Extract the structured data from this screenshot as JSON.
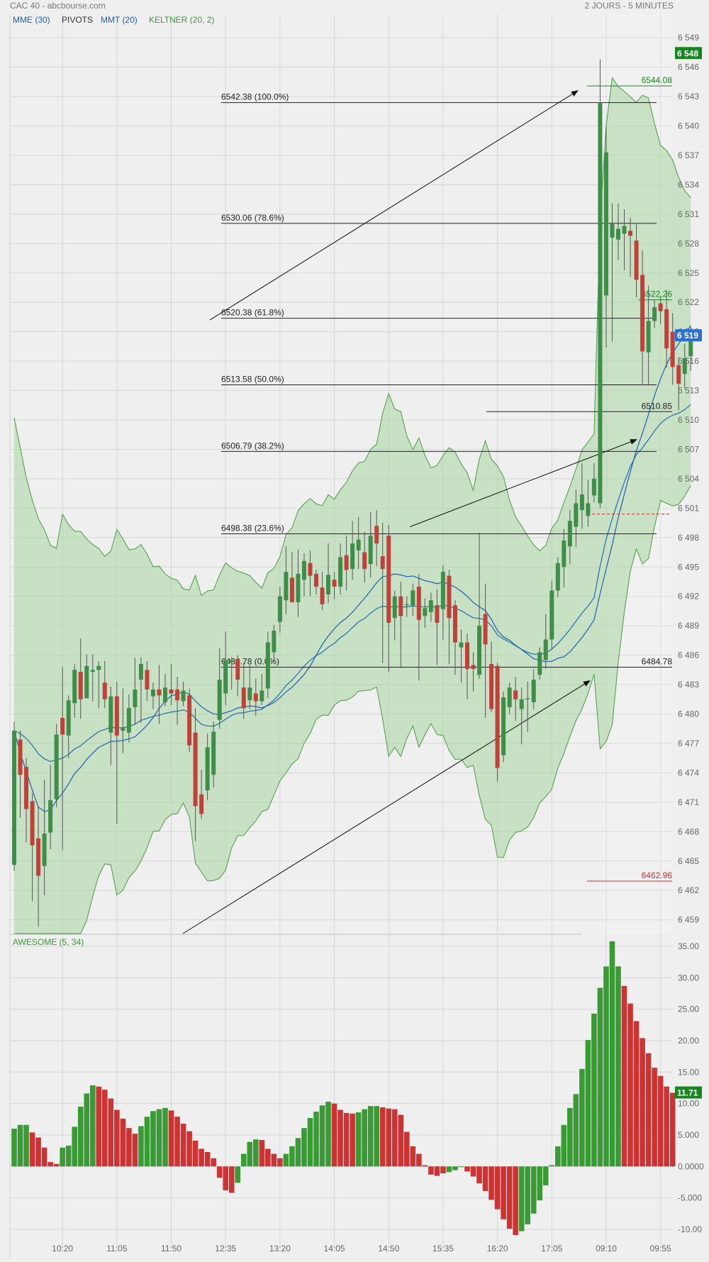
{
  "header": {
    "title": "CAC 40 - abcbourse.com",
    "timeframe": "2 JOURS - 5 MINUTES",
    "legend": [
      {
        "label": "MME (30)",
        "color": "#1f5fb0"
      },
      {
        "label": "PIVOTS",
        "color": "#333333"
      },
      {
        "label": "MMT (20)",
        "color": "#1f5fb0"
      },
      {
        "label": "KELTNER (20, 2)",
        "color": "#3f9b3f"
      }
    ],
    "oscillator_label": "AWESOME (5, 34)"
  },
  "colors": {
    "up": "#3e8e4a",
    "down": "#c0413a",
    "osc_up": "#3a9a35",
    "osc_down": "#cc3333",
    "keltner_fill": "#a8d4a0",
    "keltner_line": "#4c9a44",
    "mme": "#1f6fb0",
    "mmt": "#1f5fb0",
    "badge_green": "#17861f",
    "badge_blue": "#2a6fd4",
    "grid": "#d6d6d6"
  },
  "chart_data": [
    {
      "type": "candlestick",
      "title": "CAC 40",
      "y_ticks": [
        "6 549",
        "6 546",
        "6 543",
        "6 540",
        "6 537",
        "6 534",
        "6 531",
        "6 528",
        "6 525",
        "6 522",
        "6 519",
        "6 516",
        "6 513",
        "6 510",
        "6 507",
        "6 504",
        "6 501",
        "6 498",
        "6 495",
        "6 492",
        "6 489",
        "6 486",
        "6 483",
        "6 480",
        "6 477",
        "6 474",
        "6 471",
        "6 468",
        "6 465",
        "6 462",
        "6 459"
      ],
      "ylim": [
        6457.6,
        6551.4
      ],
      "x_ticks": [
        "10:20",
        "11:05",
        "11:50",
        "12:35",
        "13:20",
        "14:05",
        "14:50",
        "15:35",
        "16:20",
        "17:05",
        "09:10",
        "09:55"
      ],
      "last_price_label": "6 519",
      "high_label": "6 548",
      "candles": [
        {
          "o": 6464.6,
          "c": 6478.3,
          "h": 6479.2,
          "l": 6464.0
        },
        {
          "o": 6477.4,
          "c": 6473.8,
          "h": 6478.3,
          "l": 6469.4
        },
        {
          "o": 6474.6,
          "c": 6470.3,
          "h": 6475.5,
          "l": 6466.9
        },
        {
          "o": 6471.1,
          "c": 6466.6,
          "h": 6471.9,
          "l": 6460.9
        },
        {
          "o": 6467.3,
          "c": 6463.5,
          "h": 6470.6,
          "l": 6458.3
        },
        {
          "o": 6464.5,
          "c": 6467.8,
          "h": 6473.3,
          "l": 6461.5
        },
        {
          "o": 6467.9,
          "c": 6471.2,
          "h": 6474.8,
          "l": 6466.2
        },
        {
          "o": 6471.3,
          "c": 6477.9,
          "h": 6479.0,
          "l": 6470.5
        },
        {
          "o": 6479.6,
          "c": 6477.9,
          "h": 6484.8,
          "l": 6466.1
        },
        {
          "o": 6477.8,
          "c": 6481.4,
          "h": 6481.9,
          "l": 6475.5
        },
        {
          "o": 6481.1,
          "c": 6484.5,
          "h": 6485.1,
          "l": 6479.6
        },
        {
          "o": 6484.3,
          "c": 6481.5,
          "h": 6487.7,
          "l": 6479.5
        },
        {
          "o": 6481.6,
          "c": 6484.9,
          "h": 6486.1,
          "l": 6482.1
        },
        {
          "o": 6484.3,
          "c": 6484.5,
          "h": 6486.1,
          "l": 6481.3
        },
        {
          "o": 6484.5,
          "c": 6484.9,
          "h": 6485.4,
          "l": 6480.6
        },
        {
          "o": 6483.2,
          "c": 6481.5,
          "h": 6485.4,
          "l": 6480.6
        },
        {
          "o": 6478.1,
          "c": 6481.8,
          "h": 6482.8,
          "l": 6474.8
        },
        {
          "o": 6481.8,
          "c": 6477.8,
          "h": 6483.3,
          "l": 6468.8
        },
        {
          "o": 6478.3,
          "c": 6478.6,
          "h": 6482.6,
          "l": 6476.0
        },
        {
          "o": 6478.1,
          "c": 6480.6,
          "h": 6482.0,
          "l": 6477.1
        },
        {
          "o": 6480.7,
          "c": 6482.5,
          "h": 6485.7,
          "l": 6478.9
        },
        {
          "o": 6483.5,
          "c": 6485.1,
          "h": 6485.8,
          "l": 6479.1
        },
        {
          "o": 6484.5,
          "c": 6482.5,
          "h": 6485.4,
          "l": 6481.3
        },
        {
          "o": 6481.8,
          "c": 6482.5,
          "h": 6483.2,
          "l": 6480.5
        },
        {
          "o": 6482.5,
          "c": 6481.9,
          "h": 6485.0,
          "l": 6479.0
        },
        {
          "o": 6481.2,
          "c": 6482.7,
          "h": 6484.1,
          "l": 6480.8
        },
        {
          "o": 6482.5,
          "c": 6482.1,
          "h": 6485.1,
          "l": 6480.9
        },
        {
          "o": 6482.5,
          "c": 6481.4,
          "h": 6483.8,
          "l": 6478.9
        },
        {
          "o": 6481.3,
          "c": 6482.4,
          "h": 6483.3,
          "l": 6480.8
        },
        {
          "o": 6481.9,
          "c": 6476.8,
          "h": 6482.6,
          "l": 6476.1
        },
        {
          "o": 6478.1,
          "c": 6470.6,
          "h": 6480.6,
          "l": 6467.0
        },
        {
          "o": 6471.8,
          "c": 6469.8,
          "h": 6474.3,
          "l": 6469.3
        },
        {
          "o": 6472.2,
          "c": 6476.6,
          "h": 6478.0,
          "l": 6471.2
        },
        {
          "o": 6473.8,
          "c": 6478.2,
          "h": 6479.2,
          "l": 6472.5
        },
        {
          "o": 6479.4,
          "c": 6483.5,
          "h": 6486.7,
          "l": 6478.5
        },
        {
          "o": 6482.1,
          "c": 6485.5,
          "h": 6488.4,
          "l": 6480.9
        },
        {
          "o": 6485.3,
          "c": 6485.5,
          "h": 6485.8,
          "l": 6482.5
        },
        {
          "o": 6485.6,
          "c": 6483.5,
          "h": 6486.0,
          "l": 6481.8
        },
        {
          "o": 6482.7,
          "c": 6480.6,
          "h": 6485.2,
          "l": 6479.5
        },
        {
          "o": 6481.4,
          "c": 6482.7,
          "h": 6485.0,
          "l": 6480.5
        },
        {
          "o": 6482.1,
          "c": 6481.3,
          "h": 6483.6,
          "l": 6479.8
        },
        {
          "o": 6481.3,
          "c": 6482.4,
          "h": 6484.1,
          "l": 6480.9
        },
        {
          "o": 6482.6,
          "c": 6487.3,
          "h": 6488.4,
          "l": 6481.6
        },
        {
          "o": 6486.3,
          "c": 6488.5,
          "h": 6489.1,
          "l": 6485.2
        },
        {
          "o": 6489.4,
          "c": 6492.0,
          "h": 6493.0,
          "l": 6488.3
        },
        {
          "o": 6491.6,
          "c": 6494.5,
          "h": 6497.1,
          "l": 6490.2
        },
        {
          "o": 6493.9,
          "c": 6491.4,
          "h": 6496.5,
          "l": 6491.4
        },
        {
          "o": 6491.4,
          "c": 6494.3,
          "h": 6496.8,
          "l": 6489.9
        },
        {
          "o": 6493.7,
          "c": 6495.6,
          "h": 6496.4,
          "l": 6492.0
        },
        {
          "o": 6495.4,
          "c": 6494.1,
          "h": 6496.7,
          "l": 6492.0
        },
        {
          "o": 6494.3,
          "c": 6493.0,
          "h": 6494.7,
          "l": 6492.2
        },
        {
          "o": 6492.9,
          "c": 6491.2,
          "h": 6494.5,
          "l": 6490.6
        },
        {
          "o": 6492.2,
          "c": 6494.2,
          "h": 6497.4,
          "l": 6491.3
        },
        {
          "o": 6493.7,
          "c": 6493.0,
          "h": 6494.5,
          "l": 6491.7
        },
        {
          "o": 6493.0,
          "c": 6496.0,
          "h": 6497.4,
          "l": 6492.2
        },
        {
          "o": 6496.2,
          "c": 6494.7,
          "h": 6498.2,
          "l": 6492.6
        },
        {
          "o": 6494.8,
          "c": 6497.4,
          "h": 6499.7,
          "l": 6493.7
        },
        {
          "o": 6496.7,
          "c": 6497.8,
          "h": 6500.1,
          "l": 6494.8
        },
        {
          "o": 6496.5,
          "c": 6494.8,
          "h": 6498.6,
          "l": 6493.4
        },
        {
          "o": 6495.3,
          "c": 6498.2,
          "h": 6500.6,
          "l": 6493.9
        },
        {
          "o": 6499.2,
          "c": 6497.4,
          "h": 6500.8,
          "l": 6495.1
        },
        {
          "o": 6496.1,
          "c": 6494.8,
          "h": 6499.5,
          "l": 6485.2
        },
        {
          "o": 6498.2,
          "c": 6489.3,
          "h": 6499.3,
          "l": 6484.3
        },
        {
          "o": 6489.8,
          "c": 6492.0,
          "h": 6492.6,
          "l": 6487.5
        },
        {
          "o": 6492.0,
          "c": 6490.0,
          "h": 6493.5,
          "l": 6484.7
        },
        {
          "o": 6491.1,
          "c": 6491.2,
          "h": 6492.0,
          "l": 6489.9
        },
        {
          "o": 6491.0,
          "c": 6492.6,
          "h": 6493.3,
          "l": 6490.0
        },
        {
          "o": 6493.0,
          "c": 6489.6,
          "h": 6494.3,
          "l": 6483.4
        },
        {
          "o": 6490.0,
          "c": 6490.8,
          "h": 6491.8,
          "l": 6488.8
        },
        {
          "o": 6490.4,
          "c": 6491.6,
          "h": 6492.4,
          "l": 6489.4
        },
        {
          "o": 6491.1,
          "c": 6489.3,
          "h": 6492.7,
          "l": 6485.0
        },
        {
          "o": 6490.7,
          "c": 6494.5,
          "h": 6495.2,
          "l": 6487.6
        },
        {
          "o": 6494.1,
          "c": 6489.8,
          "h": 6494.7,
          "l": 6485.1
        },
        {
          "o": 6491.1,
          "c": 6487.3,
          "h": 6491.6,
          "l": 6484.0
        },
        {
          "o": 6486.8,
          "c": 6487.3,
          "h": 6488.6,
          "l": 6483.2
        },
        {
          "o": 6487.3,
          "c": 6484.6,
          "h": 6488.2,
          "l": 6481.5
        },
        {
          "o": 6485.0,
          "c": 6484.6,
          "h": 6486.3,
          "l": 6482.3
        },
        {
          "o": 6484.0,
          "c": 6489.0,
          "h": 6498.5,
          "l": 6483.6
        },
        {
          "o": 6490.2,
          "c": 6487.1,
          "h": 6493.3,
          "l": 6479.6
        },
        {
          "o": 6485.1,
          "c": 6480.5,
          "h": 6487.4,
          "l": 6480.2
        },
        {
          "o": 6484.9,
          "c": 6474.5,
          "h": 6485.2,
          "l": 6473.1
        },
        {
          "o": 6475.8,
          "c": 6481.7,
          "h": 6482.3,
          "l": 6475.1
        },
        {
          "o": 6480.7,
          "c": 6482.7,
          "h": 6483.2,
          "l": 6480.0
        },
        {
          "o": 6482.4,
          "c": 6481.5,
          "h": 6483.8,
          "l": 6479.3
        },
        {
          "o": 6480.5,
          "c": 6481.5,
          "h": 6482.7,
          "l": 6476.9
        },
        {
          "o": 6481.6,
          "c": 6481.6,
          "h": 6483.3,
          "l": 6478.2
        },
        {
          "o": 6481.2,
          "c": 6483.5,
          "h": 6484.6,
          "l": 6480.5
        },
        {
          "o": 6484.0,
          "c": 6486.3,
          "h": 6486.8,
          "l": 6483.5
        },
        {
          "o": 6485.5,
          "c": 6487.6,
          "h": 6490.2,
          "l": 6484.6
        },
        {
          "o": 6487.6,
          "c": 6492.6,
          "h": 6493.6,
          "l": 6486.6
        },
        {
          "o": 6492.6,
          "c": 6495.4,
          "h": 6496.0,
          "l": 6491.9
        },
        {
          "o": 6495.0,
          "c": 6497.7,
          "h": 6498.9,
          "l": 6492.9
        },
        {
          "o": 6497.1,
          "c": 6499.7,
          "h": 6500.8,
          "l": 6495.3
        },
        {
          "o": 6499.1,
          "c": 6501.5,
          "h": 6502.9,
          "l": 6497.0
        },
        {
          "o": 6500.8,
          "c": 6502.4,
          "h": 6505.6,
          "l": 6498.9
        },
        {
          "o": 6500.2,
          "c": 6501.5,
          "h": 6503.9,
          "l": 6499.1
        },
        {
          "o": 6502.3,
          "c": 6504.0,
          "h": 6505.6,
          "l": 6501.6
        },
        {
          "o": 6501.5,
          "c": 6542.4,
          "h": 6546.8,
          "l": 6501.0
        },
        {
          "o": 6522.7,
          "c": 6537.3,
          "h": 6539.9,
          "l": 6517.4
        },
        {
          "o": 6528.6,
          "c": 6530.0,
          "h": 6532.1,
          "l": 6518.0
        },
        {
          "o": 6528.4,
          "c": 6529.5,
          "h": 6532.1,
          "l": 6526.3
        },
        {
          "o": 6529.0,
          "c": 6529.8,
          "h": 6531.5,
          "l": 6525.3
        },
        {
          "o": 6529.3,
          "c": 6528.8,
          "h": 6530.6,
          "l": 6524.6
        },
        {
          "o": 6528.3,
          "c": 6524.3,
          "h": 6530.0,
          "l": 6522.5
        },
        {
          "o": 6524.8,
          "c": 6517.0,
          "h": 6527.3,
          "l": 6513.6
        },
        {
          "o": 6516.9,
          "c": 6520.1,
          "h": 6523.7,
          "l": 6513.6
        },
        {
          "o": 6520.1,
          "c": 6521.5,
          "h": 6522.3,
          "l": 6519.4
        },
        {
          "o": 6521.9,
          "c": 6521.1,
          "h": 6522.6,
          "l": 6519.8
        },
        {
          "o": 6521.3,
          "c": 6517.3,
          "h": 6523.3,
          "l": 6515.3
        },
        {
          "o": 6519.0,
          "c": 6515.4,
          "h": 6520.9,
          "l": 6513.6
        },
        {
          "o": 6515.6,
          "c": 6513.7,
          "h": 6516.4,
          "l": 6511.0
        },
        {
          "o": 6514.7,
          "c": 6516.3,
          "h": 6517.8,
          "l": 6513.2
        },
        {
          "o": 6516.5,
          "c": 6519.0,
          "h": 6519.5,
          "l": 6515.0
        }
      ],
      "fibonacci": [
        {
          "label": "6542.38  (100.0%)",
          "value": 6542.38
        },
        {
          "label": "6530.06  (78.6%)",
          "value": 6530.06
        },
        {
          "label": "6520.38  (61.8%)",
          "value": 6520.38
        },
        {
          "label": "6513.58  (50.0%)",
          "value": 6513.58
        },
        {
          "label": "6506.79  (38.2%)",
          "value": 6506.79
        },
        {
          "label": "6498.38  (23.6%)",
          "value": 6498.38
        },
        {
          "label": "6484.78  (0.0%)",
          "value": 6484.78
        }
      ],
      "level_labels": [
        {
          "label": "6544.08",
          "value": 6544.08,
          "color": "#17861f"
        },
        {
          "label": "6522.26",
          "value": 6522.26,
          "color": "#17861f"
        },
        {
          "label": "6510.85",
          "value": 6510.85,
          "color": "#222222"
        },
        {
          "label": "6484.78",
          "value": 6484.78,
          "color": "#222222"
        },
        {
          "label": "6462.96",
          "value": 6462.96,
          "color": "#cc3333"
        }
      ],
      "dashed_level": 6500.4
    },
    {
      "type": "bar",
      "title": "AWESOME (5, 34)",
      "y_ticks": [
        "35.00",
        "30.00",
        "25.00",
        "20.00",
        "15.00",
        "10.00",
        "5.000",
        "0.0000",
        "-5.000",
        "-10.00"
      ],
      "ylim": [
        -12.6,
        36.8
      ],
      "last_value_label": "11.71",
      "values": [
        6.0,
        6.6,
        6.6,
        5.4,
        4.6,
        3.0,
        0.7,
        0.4,
        3.0,
        3.3,
        6.3,
        9.5,
        11.6,
        12.9,
        12.7,
        12.2,
        10.8,
        9.0,
        7.6,
        6.1,
        5.2,
        6.4,
        7.9,
        8.8,
        9.1,
        9.3,
        8.9,
        7.9,
        6.8,
        5.6,
        4.1,
        2.8,
        2.3,
        1.3,
        -1.8,
        -3.8,
        -4.2,
        -2.6,
        2.0,
        3.9,
        4.3,
        4.2,
        2.8,
        2.0,
        1.3,
        2.0,
        3.2,
        4.5,
        6.1,
        7.7,
        8.7,
        9.7,
        10.3,
        10.0,
        9.0,
        8.5,
        8.4,
        8.6,
        9.1,
        9.6,
        9.6,
        9.4,
        9.2,
        9.1,
        8.2,
        5.5,
        3.2,
        2.0,
        0.2,
        -1.3,
        -1.5,
        -1.1,
        -0.9,
        -0.6,
        -0.1,
        -0.8,
        -1.6,
        -2.7,
        -3.9,
        -5.3,
        -6.8,
        -8.4,
        -9.9,
        -10.9,
        -10.3,
        -9.2,
        -7.5,
        -5.4,
        -3.0,
        0.2,
        3.2,
        6.6,
        9.3,
        11.5,
        15.5,
        20.1,
        24.3,
        28.4,
        31.8,
        35.8,
        31.8,
        28.7,
        25.9,
        23.1,
        20.4,
        18.0,
        15.7,
        14.4,
        12.7,
        11.7
      ],
      "colors": [
        "up",
        "up",
        "up",
        "down",
        "down",
        "down",
        "down",
        "down",
        "up",
        "up",
        "up",
        "up",
        "up",
        "up",
        "down",
        "down",
        "down",
        "down",
        "down",
        "down",
        "down",
        "up",
        "up",
        "up",
        "up",
        "up",
        "down",
        "down",
        "down",
        "down",
        "down",
        "down",
        "down",
        "down",
        "down",
        "down",
        "down",
        "up",
        "up",
        "up",
        "up",
        "down",
        "down",
        "down",
        "down",
        "up",
        "up",
        "up",
        "up",
        "up",
        "up",
        "up",
        "up",
        "down",
        "down",
        "down",
        "down",
        "up",
        "up",
        "up",
        "up",
        "down",
        "down",
        "down",
        "down",
        "down",
        "down",
        "down",
        "down",
        "down",
        "down",
        "down",
        "up",
        "up",
        "up",
        "down",
        "down",
        "down",
        "down",
        "down",
        "down",
        "down",
        "down",
        "down",
        "up",
        "up",
        "up",
        "up",
        "up",
        "up",
        "up",
        "up",
        "up",
        "up",
        "up",
        "up",
        "up",
        "up",
        "up",
        "up",
        "up",
        "down",
        "down",
        "down",
        "down",
        "down",
        "down",
        "down",
        "down",
        "down",
        "down"
      ]
    }
  ]
}
